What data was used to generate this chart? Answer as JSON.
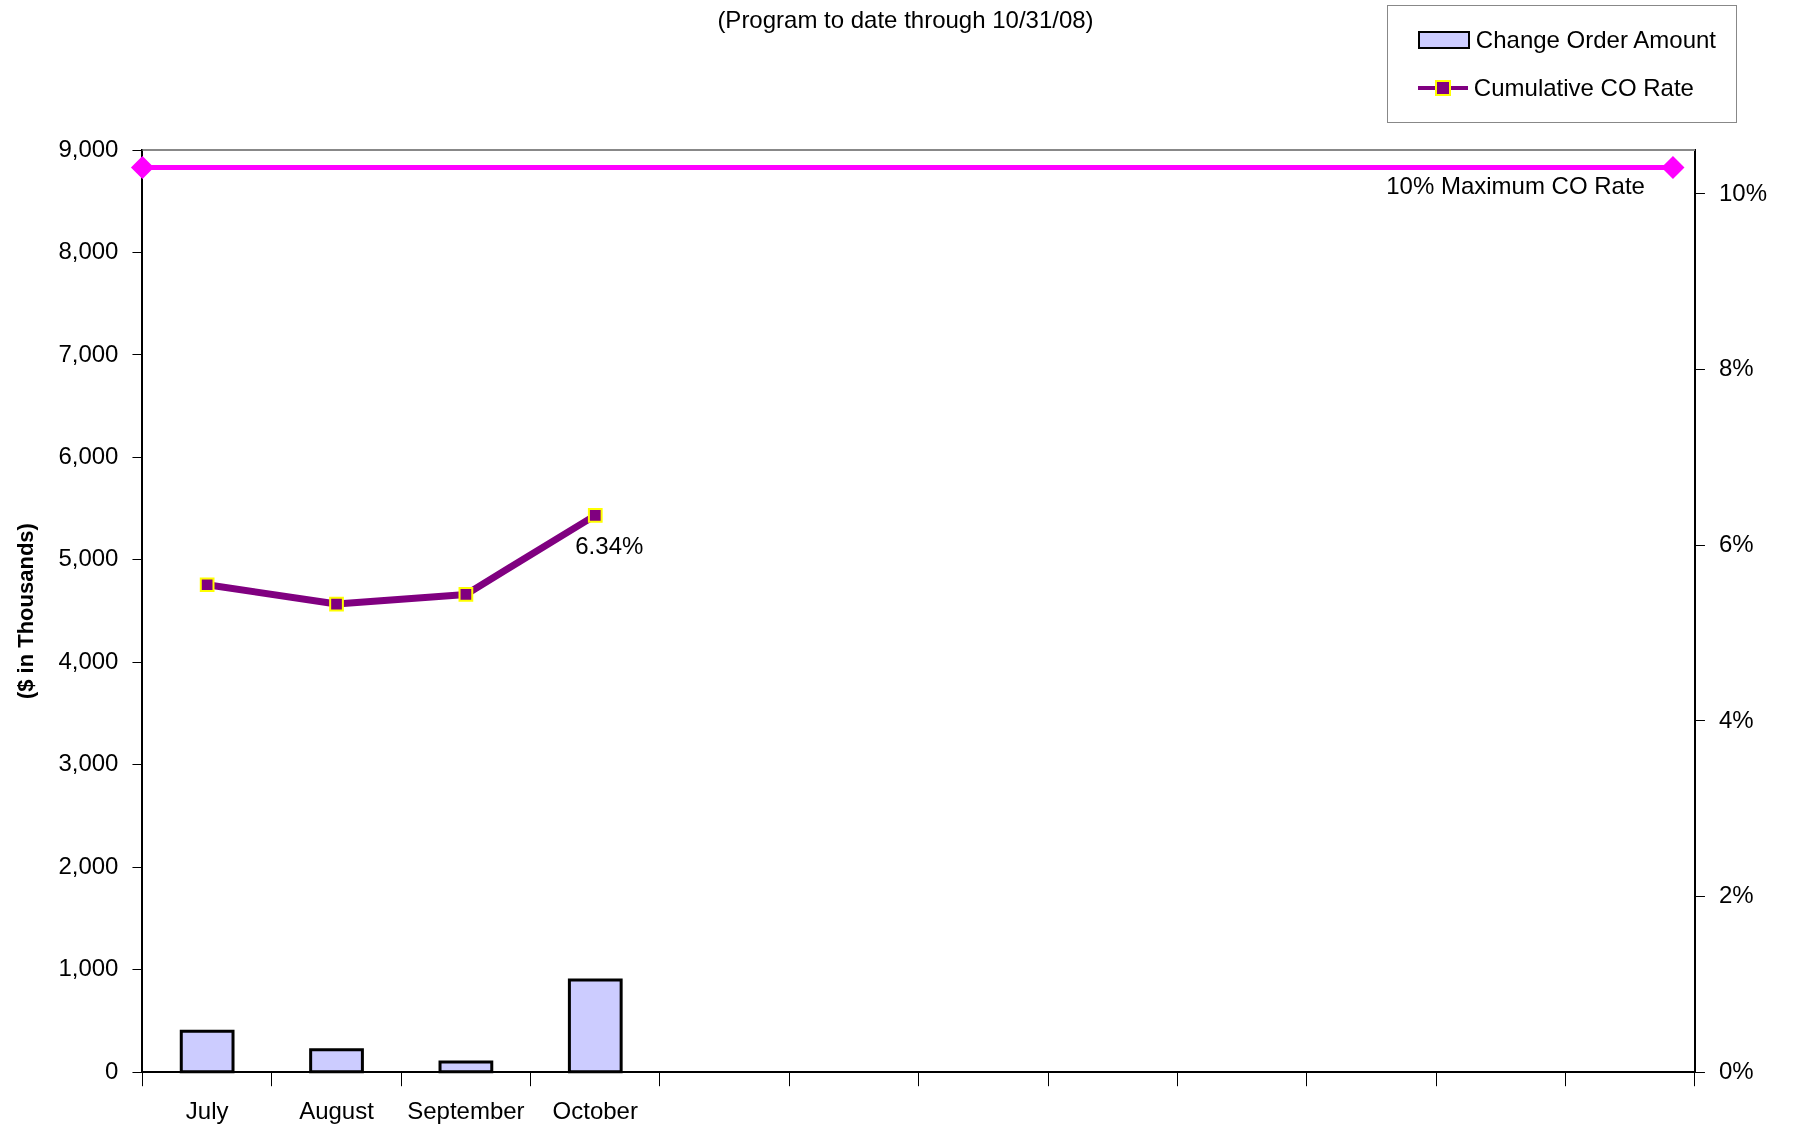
{
  "chart_data": {
    "type": "bar",
    "subtitle": "(Program to date through 10/31/08)",
    "ylabel": "($ in Thousands)",
    "categories": [
      "July",
      "August",
      "September",
      "October",
      null,
      null,
      null,
      null,
      null,
      null,
      null,
      null
    ],
    "series": [
      {
        "name": "Change Order Amount",
        "color": "#ccccff",
        "values": [
          400,
          220,
          100,
          900,
          null,
          null,
          null,
          null,
          null,
          null,
          null,
          null
        ]
      },
      {
        "name": "Cumulative CO Rate",
        "type": "line",
        "axis": "y2",
        "color": "#800080",
        "marker": "square",
        "values": [
          5.55,
          5.33,
          5.44,
          6.34,
          null,
          null,
          null,
          null,
          null,
          null,
          null,
          null
        ],
        "value_labels": [
          null,
          null,
          null,
          "6.34%",
          null,
          null,
          null,
          null,
          null,
          null,
          null,
          null
        ]
      }
    ],
    "ylim": [
      0,
      9000
    ],
    "yticks": [
      {
        "value": 0,
        "label": "0"
      },
      {
        "value": 1000,
        "label": "1,000"
      },
      {
        "value": 2000,
        "label": "2,000"
      },
      {
        "value": 3000,
        "label": "3,000"
      },
      {
        "value": 4000,
        "label": "4,000"
      },
      {
        "value": 5000,
        "label": "5,000"
      },
      {
        "value": 6000,
        "label": "6,000"
      },
      {
        "value": 7000,
        "label": "7,000"
      },
      {
        "value": 8000,
        "label": "8,000"
      },
      {
        "value": 9000,
        "label": "9,000"
      }
    ],
    "y2lim": [
      0,
      10.5
    ],
    "y2ticks": [
      {
        "value": 0,
        "label": "0%"
      },
      {
        "value": 2,
        "label": "2%"
      },
      {
        "value": 4,
        "label": "4%"
      },
      {
        "value": 6,
        "label": "6%"
      },
      {
        "value": 8,
        "label": "8%"
      },
      {
        "value": 10,
        "label": "10%"
      }
    ],
    "ref_lines": [
      {
        "axis": "y2",
        "value": 10.3,
        "label": "10% Maximum CO Rate",
        "color": "#ff00ff"
      }
    ],
    "grid": false,
    "legend": "top right"
  }
}
